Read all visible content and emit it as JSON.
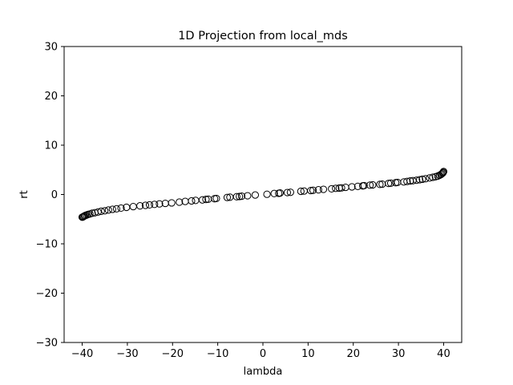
{
  "chart_data": {
    "type": "scatter",
    "title": "1D Projection from local_mds",
    "xlabel": "lambda",
    "ylabel": "rt",
    "xlim": [
      -44,
      44
    ],
    "ylim": [
      -30,
      30
    ],
    "xticks": [
      -40,
      -30,
      -20,
      -10,
      0,
      10,
      20,
      30,
      40
    ],
    "yticks": [
      -30,
      -20,
      -10,
      0,
      10,
      20,
      30
    ],
    "xtick_labels": [
      "−40",
      "−30",
      "−20",
      "−10",
      "0",
      "10",
      "20",
      "30",
      "40"
    ],
    "ytick_labels": [
      "−30",
      "−20",
      "−10",
      "0",
      "10",
      "20",
      "30"
    ],
    "grid": false,
    "marker": "open-circle",
    "marker_color": "#000000",
    "series": [
      {
        "x": [
          -40.0,
          -39.85,
          -39.7,
          -39.5,
          -39.3,
          -39.0,
          -38.7,
          -38.3,
          -37.8,
          -37.2,
          -36.5,
          -35.8,
          -35.0,
          -34.2,
          -33.3,
          -32.4,
          -31.4,
          -30.2,
          -28.7,
          -27.2,
          -26.0,
          -25.1,
          -24.0,
          -22.9,
          -21.6,
          -20.2,
          -18.5,
          -17.2,
          -15.8,
          -14.9,
          -13.4,
          -12.6,
          -12.1,
          -10.7,
          -10.3,
          -7.9,
          -7.3,
          -5.8,
          -5.2,
          -4.7,
          -3.4,
          -1.7,
          0.9,
          2.5,
          3.5,
          3.8,
          5.4,
          6.1,
          8.4,
          9.1,
          10.6,
          11.1,
          12.3,
          13.4,
          15.2,
          16.1,
          16.9,
          17.4,
          18.3,
          19.7,
          21.0,
          22.1,
          22.4,
          23.7,
          24.3,
          25.9,
          26.4,
          27.8,
          28.3,
          29.4,
          29.8,
          31.2,
          31.9,
          32.6,
          33.2,
          34.0,
          34.7,
          35.3,
          36.0,
          36.9,
          37.6,
          38.2,
          38.7,
          39.1,
          39.4,
          39.6,
          39.8,
          39.9,
          40.0
        ],
        "y": [
          -4.6,
          -4.55,
          -4.45,
          -4.35,
          -4.25,
          -4.15,
          -4.05,
          -3.95,
          -3.8,
          -3.7,
          -3.55,
          -3.4,
          -3.3,
          -3.15,
          -3.0,
          -2.9,
          -2.75,
          -2.6,
          -2.45,
          -2.3,
          -2.2,
          -2.1,
          -2.0,
          -1.9,
          -1.8,
          -1.7,
          -1.55,
          -1.4,
          -1.3,
          -1.2,
          -1.1,
          -1.0,
          -0.95,
          -0.85,
          -0.8,
          -0.6,
          -0.55,
          -0.45,
          -0.4,
          -0.35,
          -0.25,
          -0.1,
          0.05,
          0.2,
          0.25,
          0.3,
          0.4,
          0.45,
          0.65,
          0.7,
          0.8,
          0.85,
          0.95,
          1.05,
          1.15,
          1.25,
          1.3,
          1.35,
          1.45,
          1.55,
          1.65,
          1.75,
          1.8,
          1.9,
          1.95,
          2.05,
          2.1,
          2.25,
          2.3,
          2.4,
          2.45,
          2.55,
          2.65,
          2.75,
          2.8,
          2.9,
          3.0,
          3.1,
          3.2,
          3.35,
          3.5,
          3.6,
          3.75,
          3.9,
          4.05,
          4.2,
          4.35,
          4.5,
          4.65
        ]
      }
    ]
  }
}
